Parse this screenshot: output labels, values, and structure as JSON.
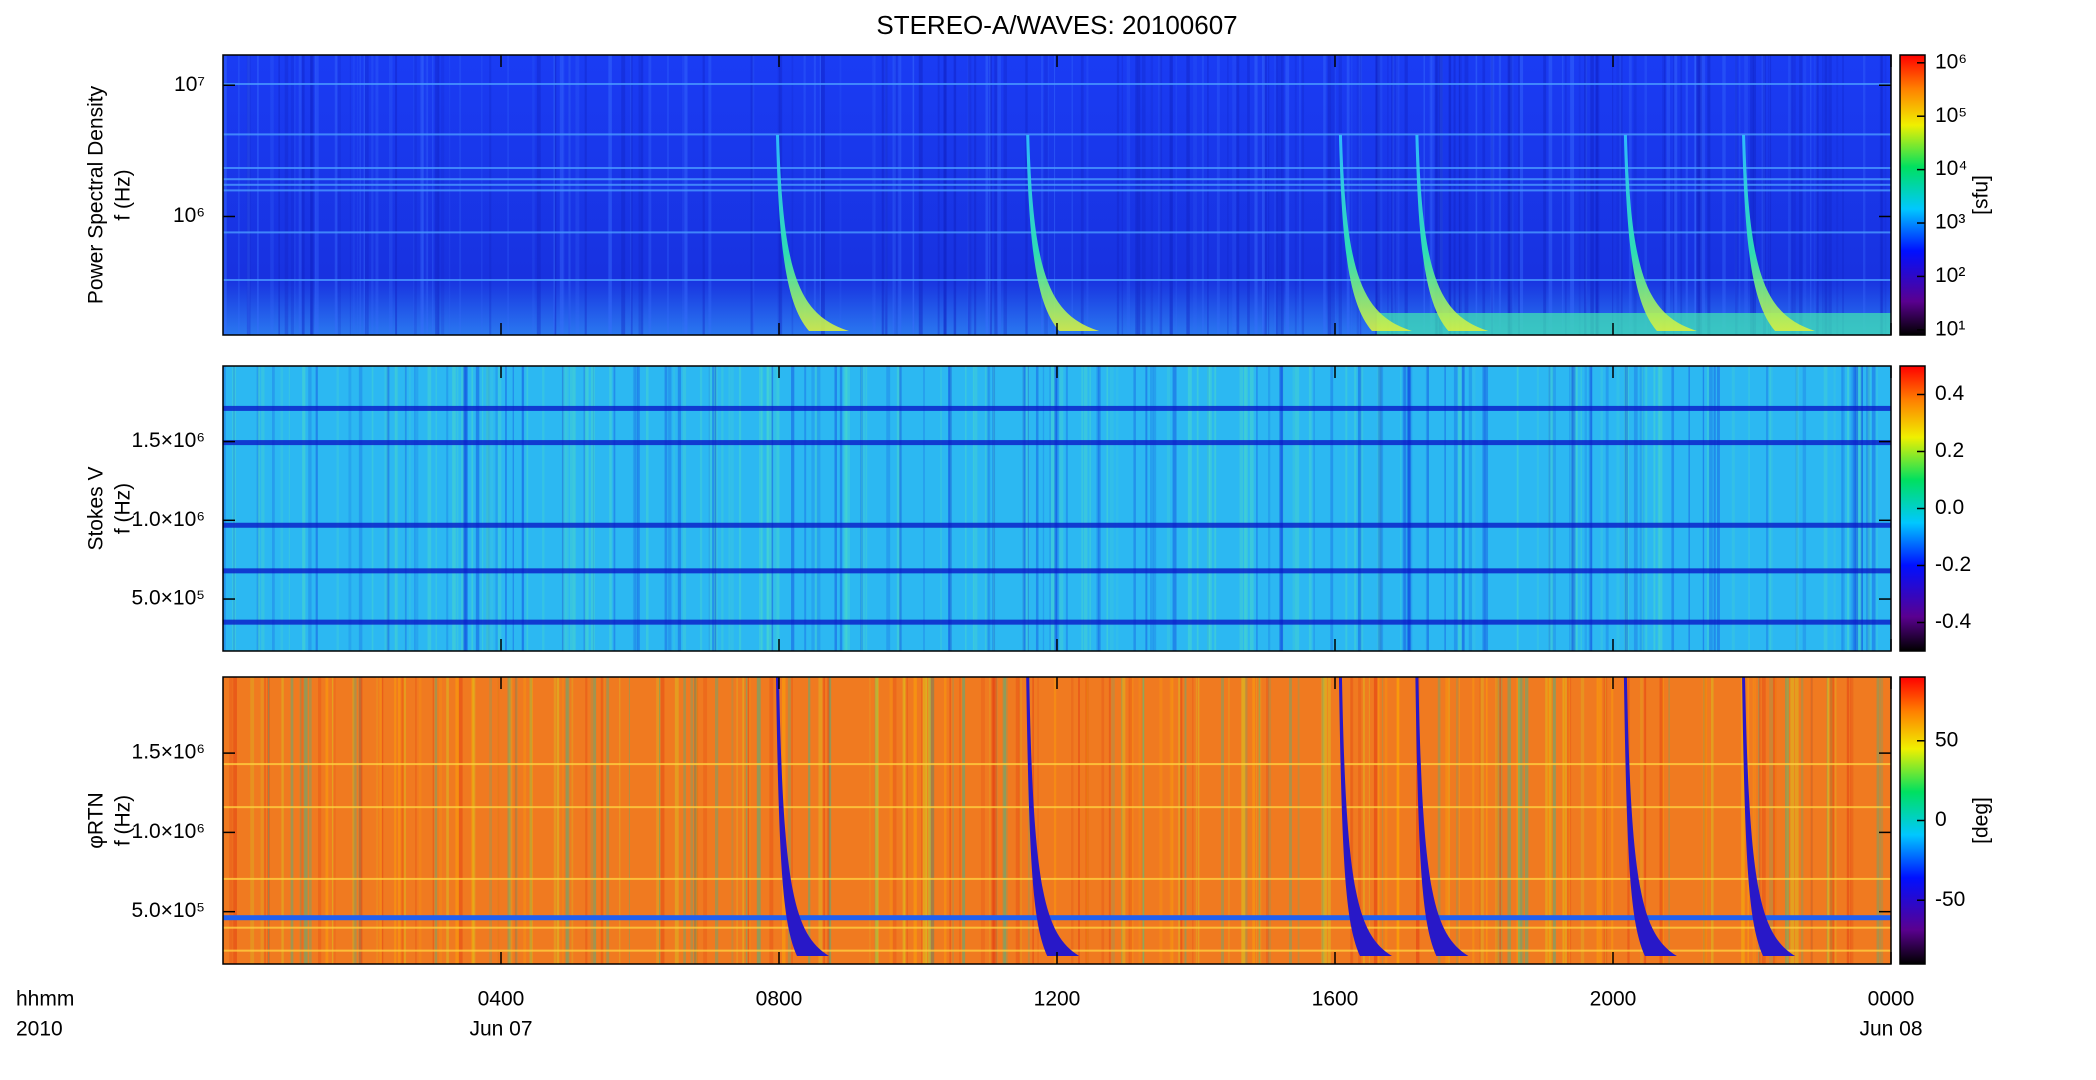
{
  "chart_data": [
    {
      "type": "spectrogram",
      "title": "STEREO-A/WAVES: 20100607",
      "y_label": [
        "Power Spectral Density",
        "f (Hz)"
      ],
      "log_y": true,
      "ylim": [
        125000,
        17000000
      ],
      "yticks": [
        {
          "value": 1000000,
          "label": "10⁶"
        },
        {
          "value": 10000000,
          "label": "10⁷"
        }
      ],
      "xlim": [
        0,
        24
      ],
      "bursts_x": [
        8.0,
        11.6,
        16.1,
        17.2,
        20.2,
        21.9
      ],
      "colorbar": {
        "label": "[sfu]",
        "log": true,
        "lim": [
          8,
          1400000
        ],
        "ticks": [
          {
            "value": 10,
            "label": "10¹"
          },
          {
            "value": 100,
            "label": "10²"
          },
          {
            "value": 1000,
            "label": "10³"
          },
          {
            "value": 10000,
            "label": "10⁴"
          },
          {
            "value": 100000,
            "label": "10⁵"
          },
          {
            "value": 1000000,
            "label": "10⁶"
          }
        ]
      }
    },
    {
      "type": "spectrogram",
      "y_label": [
        "Stokes V",
        "f (Hz)"
      ],
      "log_y": false,
      "ylim": [
        170000,
        1980000
      ],
      "yticks": [
        {
          "value": 500000,
          "label": "5.0×10⁵"
        },
        {
          "value": 1000000,
          "label": "1.0×10⁶"
        },
        {
          "value": 1500000,
          "label": "1.5×10⁶"
        }
      ],
      "xlim": [
        0,
        24
      ],
      "colorbar": {
        "label": "",
        "log": false,
        "lim": [
          -0.5,
          0.5
        ],
        "ticks": [
          0.4,
          0.2,
          {
            "value": 0,
            "label": "0.0"
          },
          -0.2,
          -0.4
        ]
      }
    },
    {
      "type": "spectrogram",
      "y_label": [
        "φRTN",
        "f (Hz)"
      ],
      "log_y": false,
      "ylim": [
        170000,
        1980000
      ],
      "yticks": [
        {
          "value": 500000,
          "label": "5.0×10⁵"
        },
        {
          "value": 1000000,
          "label": "1.0×10⁶"
        },
        {
          "value": 1500000,
          "label": "1.5×10⁶"
        }
      ],
      "xlim": [
        0,
        24
      ],
      "colorbar": {
        "label": "[deg]",
        "log": false,
        "lim": [
          -90,
          90
        ],
        "ticks": [
          50,
          0,
          -50
        ]
      },
      "xticks": [
        {
          "value": 4,
          "label": "0400"
        },
        {
          "value": 8,
          "label": "0800"
        },
        {
          "value": 12,
          "label": "1200"
        },
        {
          "value": 16,
          "label": "1600"
        },
        {
          "value": 20,
          "label": "2000"
        },
        {
          "value": 24,
          "label": "0000"
        }
      ],
      "date_labels": [
        {
          "value": 4,
          "label": "Jun 07"
        },
        {
          "value": 24,
          "label": "Jun 08"
        }
      ],
      "x_label": [
        "hhmm",
        "2010"
      ]
    }
  ]
}
